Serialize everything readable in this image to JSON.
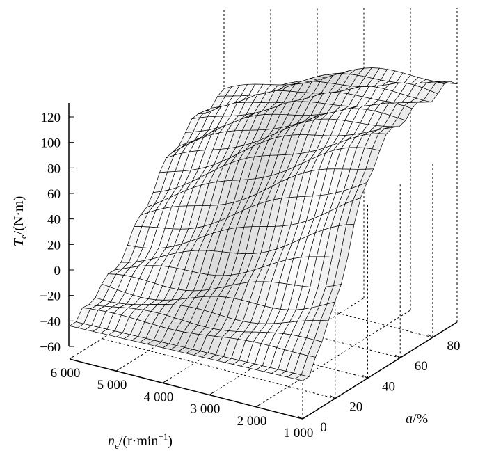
{
  "chart_data": {
    "type": "surface",
    "xlabel": {
      "var": "n",
      "sub": "e",
      "unit": "/(r·min",
      "exp": "−1",
      "close": ")"
    },
    "ylabel": {
      "var": "a",
      "unit": "/%"
    },
    "zlabel": {
      "var": "T",
      "sub": "e",
      "unit": "/(N·m)"
    },
    "x_ticks": [
      "1 000",
      "2 000",
      "3 000",
      "4 000",
      "5 000",
      "6 000"
    ],
    "x_tick_values": [
      1000,
      2000,
      3000,
      4000,
      5000,
      6000
    ],
    "y_ticks": [
      "0",
      "20",
      "40",
      "60",
      "80"
    ],
    "y_tick_values": [
      0,
      20,
      40,
      60,
      80
    ],
    "z_ticks": [
      "−60",
      "−40",
      "−20",
      "0",
      "20",
      "40",
      "60",
      "80",
      "100",
      "120"
    ],
    "z_tick_values": [
      -60,
      -40,
      -20,
      0,
      20,
      40,
      60,
      80,
      100,
      120
    ],
    "xlim": [
      1000,
      6000
    ],
    "ylim": [
      0,
      95
    ],
    "zlim": [
      -60,
      120
    ],
    "grid": true,
    "surface_description": "Engine torque map: torque near -30 N·m at 0% accelerator, rising steeply with accelerator position and saturating around 100-130 N·m above ~60%, highest at low-to-mid engine speeds."
  }
}
